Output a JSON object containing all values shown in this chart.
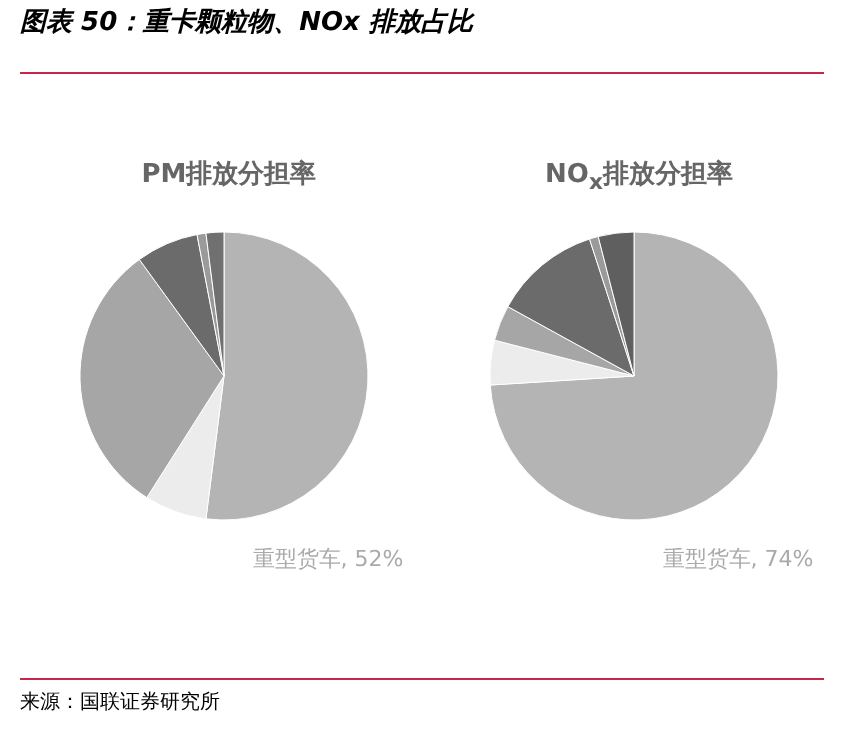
{
  "chart_data": [
    {
      "type": "pie",
      "title": "图表 50：重卡颗粒物、NOx 排放占比",
      "subtitle": "PM排放分担率",
      "categories": [
        "重型货车",
        null,
        null,
        null,
        null,
        null
      ],
      "values": [
        52,
        7,
        31,
        7,
        1,
        2
      ],
      "colors": [
        "#b4b4b4",
        "#ececec",
        "#a6a6a6",
        "#6b6b6b",
        "#9a9a9a",
        "#707070"
      ],
      "value_labels": [
        "52%",
        null,
        null,
        null,
        null,
        null
      ],
      "legend": false
    },
    {
      "type": "pie",
      "subtitle": "NO$_{x}$排放分担率",
      "categories": [
        "重型货车",
        null,
        null,
        null,
        null,
        null
      ],
      "values": [
        74,
        5,
        4,
        12,
        1,
        4
      ],
      "colors": [
        "#b4b4b4",
        "#ececec",
        "#a6a6a6",
        "#6b6b6b",
        "#9a9a9a",
        "#5f5f5f"
      ],
      "value_labels": [
        "74%",
        null,
        null,
        null,
        null,
        null
      ],
      "legend": false,
      "annotations": [
        "来源：国联证券研究所"
      ]
    }
  ]
}
